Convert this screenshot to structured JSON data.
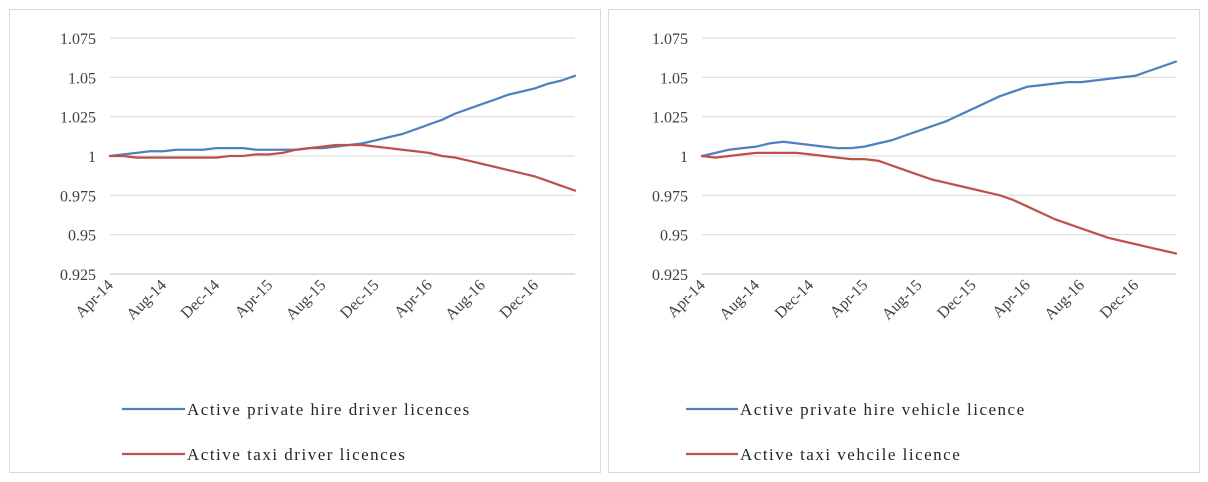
{
  "chart_data": [
    {
      "type": "line",
      "title": "",
      "xlabel": "",
      "ylabel": "",
      "ylim": [
        0.925,
        1.075
      ],
      "yticks": [
        "1.075",
        "1.05",
        "1.025",
        "1",
        "0.975",
        "0.95",
        "0.925"
      ],
      "xticks": [
        "Apr-14",
        "Aug-14",
        "Dec-14",
        "Apr-15",
        "Aug-15",
        "Dec-15",
        "Apr-16",
        "Aug-16",
        "Dec-16"
      ],
      "x": [
        "Apr-14",
        "May-14",
        "Jun-14",
        "Jul-14",
        "Aug-14",
        "Sep-14",
        "Oct-14",
        "Nov-14",
        "Dec-14",
        "Jan-15",
        "Feb-15",
        "Mar-15",
        "Apr-15",
        "May-15",
        "Jun-15",
        "Jul-15",
        "Aug-15",
        "Sep-15",
        "Oct-15",
        "Nov-15",
        "Dec-15",
        "Jan-16",
        "Feb-16",
        "Mar-16",
        "Apr-16",
        "May-16",
        "Jun-16",
        "Jul-16",
        "Aug-16",
        "Sep-16",
        "Oct-16",
        "Nov-16",
        "Dec-16",
        "Jan-17",
        "Feb-17",
        "Mar-17"
      ],
      "grid": "horizontal",
      "legend": "bottom",
      "series": [
        {
          "name": "Active private hire driver licences",
          "color": "#4f81bd",
          "values": [
            1.0,
            1.001,
            1.002,
            1.003,
            1.003,
            1.004,
            1.004,
            1.004,
            1.005,
            1.005,
            1.005,
            1.004,
            1.004,
            1.004,
            1.004,
            1.005,
            1.005,
            1.006,
            1.007,
            1.008,
            1.01,
            1.012,
            1.014,
            1.017,
            1.02,
            1.023,
            1.027,
            1.03,
            1.033,
            1.036,
            1.039,
            1.041,
            1.043,
            1.046,
            1.048,
            1.051
          ]
        },
        {
          "name": "Active taxi driver licences",
          "color": "#c0504d",
          "values": [
            1.0,
            1.0,
            0.999,
            0.999,
            0.999,
            0.999,
            0.999,
            0.999,
            0.999,
            1.0,
            1.0,
            1.001,
            1.001,
            1.002,
            1.004,
            1.005,
            1.006,
            1.007,
            1.007,
            1.007,
            1.006,
            1.005,
            1.004,
            1.003,
            1.002,
            1.0,
            0.999,
            0.997,
            0.995,
            0.993,
            0.991,
            0.989,
            0.987,
            0.984,
            0.981,
            0.978
          ]
        }
      ]
    },
    {
      "type": "line",
      "title": "",
      "xlabel": "",
      "ylabel": "",
      "ylim": [
        0.925,
        1.075
      ],
      "yticks": [
        "1.075",
        "1.05",
        "1.025",
        "1",
        "0.975",
        "0.95",
        "0.925"
      ],
      "xticks": [
        "Apr-14",
        "Aug-14",
        "Dec-14",
        "Apr-15",
        "Aug-15",
        "Dec-15",
        "Apr-16",
        "Aug-16",
        "Dec-16"
      ],
      "x": [
        "Apr-14",
        "May-14",
        "Jun-14",
        "Jul-14",
        "Aug-14",
        "Sep-14",
        "Oct-14",
        "Nov-14",
        "Dec-14",
        "Jan-15",
        "Feb-15",
        "Mar-15",
        "Apr-15",
        "May-15",
        "Jun-15",
        "Jul-15",
        "Aug-15",
        "Sep-15",
        "Oct-15",
        "Nov-15",
        "Dec-15",
        "Jan-16",
        "Feb-16",
        "Mar-16",
        "Apr-16",
        "May-16",
        "Jun-16",
        "Jul-16",
        "Aug-16",
        "Sep-16",
        "Oct-16",
        "Nov-16",
        "Dec-16",
        "Jan-17",
        "Feb-17",
        "Mar-17"
      ],
      "grid": "horizontal",
      "legend": "bottom",
      "series": [
        {
          "name": "Active private hire vehicle licence",
          "color": "#4f81bd",
          "values": [
            1.0,
            1.002,
            1.004,
            1.005,
            1.006,
            1.008,
            1.009,
            1.008,
            1.007,
            1.006,
            1.005,
            1.005,
            1.006,
            1.008,
            1.01,
            1.013,
            1.016,
            1.019,
            1.022,
            1.026,
            1.03,
            1.034,
            1.038,
            1.041,
            1.044,
            1.045,
            1.046,
            1.047,
            1.047,
            1.048,
            1.049,
            1.05,
            1.051,
            1.054,
            1.057,
            1.06
          ]
        },
        {
          "name": "Active taxi vehcile licence",
          "color": "#c0504d",
          "values": [
            1.0,
            0.999,
            1.0,
            1.001,
            1.002,
            1.002,
            1.002,
            1.002,
            1.001,
            1.0,
            0.999,
            0.998,
            0.998,
            0.997,
            0.994,
            0.991,
            0.988,
            0.985,
            0.983,
            0.981,
            0.979,
            0.977,
            0.975,
            0.972,
            0.968,
            0.964,
            0.96,
            0.957,
            0.954,
            0.951,
            0.948,
            0.946,
            0.944,
            0.942,
            0.94,
            0.938
          ]
        }
      ]
    }
  ]
}
